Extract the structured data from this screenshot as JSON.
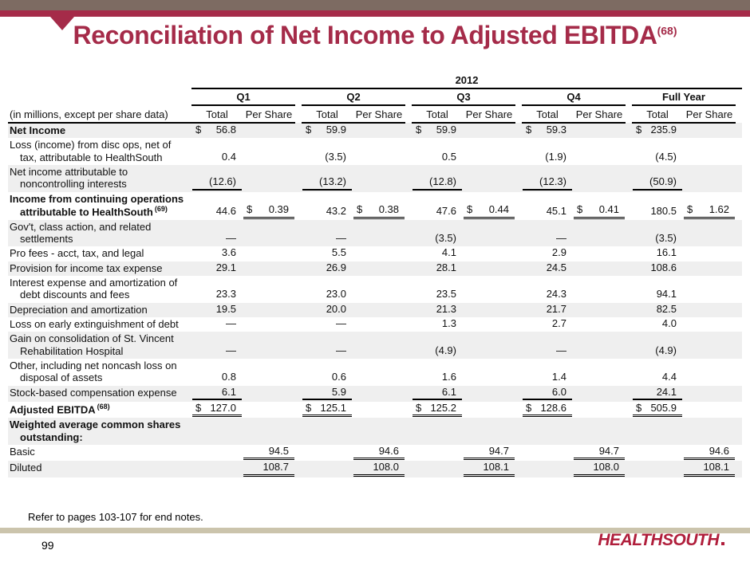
{
  "colors": {
    "crimson": "#A52B49",
    "taupe": "#7D6B62",
    "tan": "#CBC4AC",
    "row_shade": "#EFEFEF",
    "logo_red": "#B01E3B"
  },
  "header": {
    "title": "Reconciliation of Net Income to Adjusted EBITDA",
    "title_sup": "(68)"
  },
  "table": {
    "year_header": "2012",
    "row_label_header": "(in millions, except per share data)",
    "period_headers": [
      "Q1",
      "Q2",
      "Q3",
      "Q4",
      "Full Year"
    ],
    "sub_headers": [
      "Total",
      "Per Share"
    ],
    "rows": [
      {
        "label": [
          "Net Income"
        ],
        "bold": true,
        "shade": true,
        "cells": [
          {
            "d": 1,
            "v": "56.8"
          },
          {},
          {
            "d": 1,
            "v": "59.9"
          },
          {},
          {
            "d": 1,
            "v": "59.9"
          },
          {},
          {
            "d": 1,
            "v": "59.3"
          },
          {},
          {
            "d": 1,
            "v": "235.9"
          },
          {}
        ]
      },
      {
        "label": [
          "Loss (income) from disc ops, net of",
          "tax, attributable to HealthSouth"
        ],
        "bold": false,
        "shade": false,
        "cells": [
          {
            "v": "0.4"
          },
          {},
          {
            "v": "(3.5)"
          },
          {},
          {
            "v": "0.5"
          },
          {},
          {
            "v": "(1.9)"
          },
          {},
          {
            "v": "(4.5)"
          },
          {}
        ]
      },
      {
        "label": [
          "Net income attributable to",
          "noncontrolling interests"
        ],
        "bold": false,
        "shade": true,
        "cells": [
          {
            "v": "(12.6)",
            "u": "s"
          },
          {},
          {
            "v": "(13.2)",
            "u": "s"
          },
          {},
          {
            "v": "(12.8)",
            "u": "s"
          },
          {},
          {
            "v": "(12.3)",
            "u": "s"
          },
          {},
          {
            "v": "(50.9)",
            "u": "s"
          },
          {}
        ]
      },
      {
        "label": [
          "Income from continuing operations",
          "attributable to HealthSouth"
        ],
        "sup": "(69)",
        "bold": true,
        "shade": false,
        "cells": [
          {
            "v": "44.6"
          },
          {
            "d": 1,
            "v": "0.39",
            "u": "d"
          },
          {
            "v": "43.2"
          },
          {
            "d": 1,
            "v": "0.38",
            "u": "d"
          },
          {
            "v": "47.6"
          },
          {
            "d": 1,
            "v": "0.44",
            "u": "d"
          },
          {
            "v": "45.1"
          },
          {
            "d": 1,
            "v": "0.41",
            "u": "d"
          },
          {
            "v": "180.5"
          },
          {
            "d": 1,
            "v": "1.62",
            "u": "d"
          }
        ]
      },
      {
        "label": [
          "Gov't, class action, and related",
          "settlements"
        ],
        "bold": false,
        "shade": true,
        "cells": [
          {
            "v": "—"
          },
          {},
          {
            "v": "—"
          },
          {},
          {
            "v": "(3.5)"
          },
          {},
          {
            "v": "—"
          },
          {},
          {
            "v": "(3.5)"
          },
          {}
        ]
      },
      {
        "label": [
          "Pro fees - acct, tax, and legal"
        ],
        "bold": false,
        "shade": false,
        "cells": [
          {
            "v": "3.6"
          },
          {},
          {
            "v": "5.5"
          },
          {},
          {
            "v": "4.1"
          },
          {},
          {
            "v": "2.9"
          },
          {},
          {
            "v": "16.1"
          },
          {}
        ]
      },
      {
        "label": [
          "Provision for income tax expense"
        ],
        "bold": false,
        "shade": true,
        "cells": [
          {
            "v": "29.1"
          },
          {},
          {
            "v": "26.9"
          },
          {},
          {
            "v": "28.1"
          },
          {},
          {
            "v": "24.5"
          },
          {},
          {
            "v": "108.6"
          },
          {}
        ]
      },
      {
        "label": [
          "Interest expense and amortization of",
          "debt discounts and fees"
        ],
        "bold": false,
        "shade": false,
        "cells": [
          {
            "v": "23.3"
          },
          {},
          {
            "v": "23.0"
          },
          {},
          {
            "v": "23.5"
          },
          {},
          {
            "v": "24.3"
          },
          {},
          {
            "v": "94.1"
          },
          {}
        ]
      },
      {
        "label": [
          "Depreciation and amortization"
        ],
        "bold": false,
        "shade": true,
        "cells": [
          {
            "v": "19.5"
          },
          {},
          {
            "v": "20.0"
          },
          {},
          {
            "v": "21.3"
          },
          {},
          {
            "v": "21.7"
          },
          {},
          {
            "v": "82.5"
          },
          {}
        ]
      },
      {
        "label": [
          "Loss on early extinguishment of debt"
        ],
        "bold": false,
        "shade": false,
        "cells": [
          {
            "v": "—"
          },
          {},
          {
            "v": "—"
          },
          {},
          {
            "v": "1.3"
          },
          {},
          {
            "v": "2.7"
          },
          {},
          {
            "v": "4.0"
          },
          {}
        ]
      },
      {
        "label": [
          "Gain on consolidation of St. Vincent",
          "Rehabilitation Hospital"
        ],
        "bold": false,
        "shade": true,
        "cells": [
          {
            "v": "—"
          },
          {},
          {
            "v": "—"
          },
          {},
          {
            "v": "(4.9)"
          },
          {},
          {
            "v": "—"
          },
          {},
          {
            "v": "(4.9)"
          },
          {}
        ]
      },
      {
        "label": [
          "Other, including net noncash loss on",
          "disposal of assets"
        ],
        "bold": false,
        "shade": false,
        "cells": [
          {
            "v": "0.8"
          },
          {},
          {
            "v": "0.6"
          },
          {},
          {
            "v": "1.6"
          },
          {},
          {
            "v": "1.4"
          },
          {},
          {
            "v": "4.4"
          },
          {}
        ]
      },
      {
        "label": [
          "Stock-based compensation expense"
        ],
        "bold": false,
        "shade": true,
        "cells": [
          {
            "v": "6.1",
            "u": "s"
          },
          {},
          {
            "v": "5.9",
            "u": "s"
          },
          {},
          {
            "v": "6.1",
            "u": "s"
          },
          {},
          {
            "v": "6.0",
            "u": "s"
          },
          {},
          {
            "v": "24.1",
            "u": "s"
          },
          {}
        ]
      },
      {
        "label": [
          "Adjusted EBITDA"
        ],
        "sup": "(68)",
        "bold": true,
        "shade": false,
        "cells": [
          {
            "d": 1,
            "v": "127.0",
            "u": "d"
          },
          {},
          {
            "d": 1,
            "v": "125.1",
            "u": "d"
          },
          {},
          {
            "d": 1,
            "v": "125.2",
            "u": "d"
          },
          {},
          {
            "d": 1,
            "v": "128.6",
            "u": "d"
          },
          {},
          {
            "d": 1,
            "v": "505.9",
            "u": "d"
          },
          {}
        ]
      },
      {
        "label": [
          "Weighted average common shares",
          "outstanding:"
        ],
        "bold": true,
        "shade": true,
        "cells": [
          {},
          {},
          {},
          {},
          {},
          {},
          {},
          {},
          {},
          {}
        ]
      },
      {
        "label": [
          "Basic"
        ],
        "bold": false,
        "shade": false,
        "cells": [
          {},
          {
            "v": "94.5",
            "u": "d"
          },
          {},
          {
            "v": "94.6",
            "u": "d"
          },
          {},
          {
            "v": "94.7",
            "u": "d"
          },
          {},
          {
            "v": "94.7",
            "u": "d"
          },
          {},
          {
            "v": "94.6",
            "u": "d"
          }
        ]
      },
      {
        "label": [
          "Diluted"
        ],
        "bold": false,
        "shade": true,
        "cells": [
          {},
          {
            "v": "108.7",
            "u": "d"
          },
          {},
          {
            "v": "108.0",
            "u": "d"
          },
          {},
          {
            "v": "108.1",
            "u": "d"
          },
          {},
          {
            "v": "108.0",
            "u": "d"
          },
          {},
          {
            "v": "108.1",
            "u": "d"
          }
        ]
      }
    ]
  },
  "footer": {
    "footnote": "Refer to pages 103-107 for end notes.",
    "page_number": "99",
    "logo_text": "HEALTHSOUTH"
  }
}
